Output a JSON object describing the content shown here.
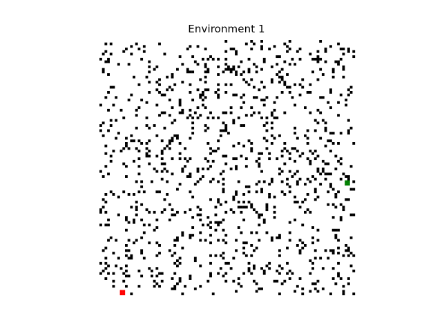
{
  "title": "Environment 1",
  "colors": {
    "background": "#ffffff",
    "obstacle": "#000000",
    "start": "#ff0000",
    "goal": "#008000"
  },
  "grid": {
    "rows": 100,
    "cols": 100,
    "obstacle_fraction": 0.1,
    "start_cell": {
      "row": 99,
      "col": 8
    },
    "goal_cell": {
      "row": 55,
      "col": 96
    }
  }
}
